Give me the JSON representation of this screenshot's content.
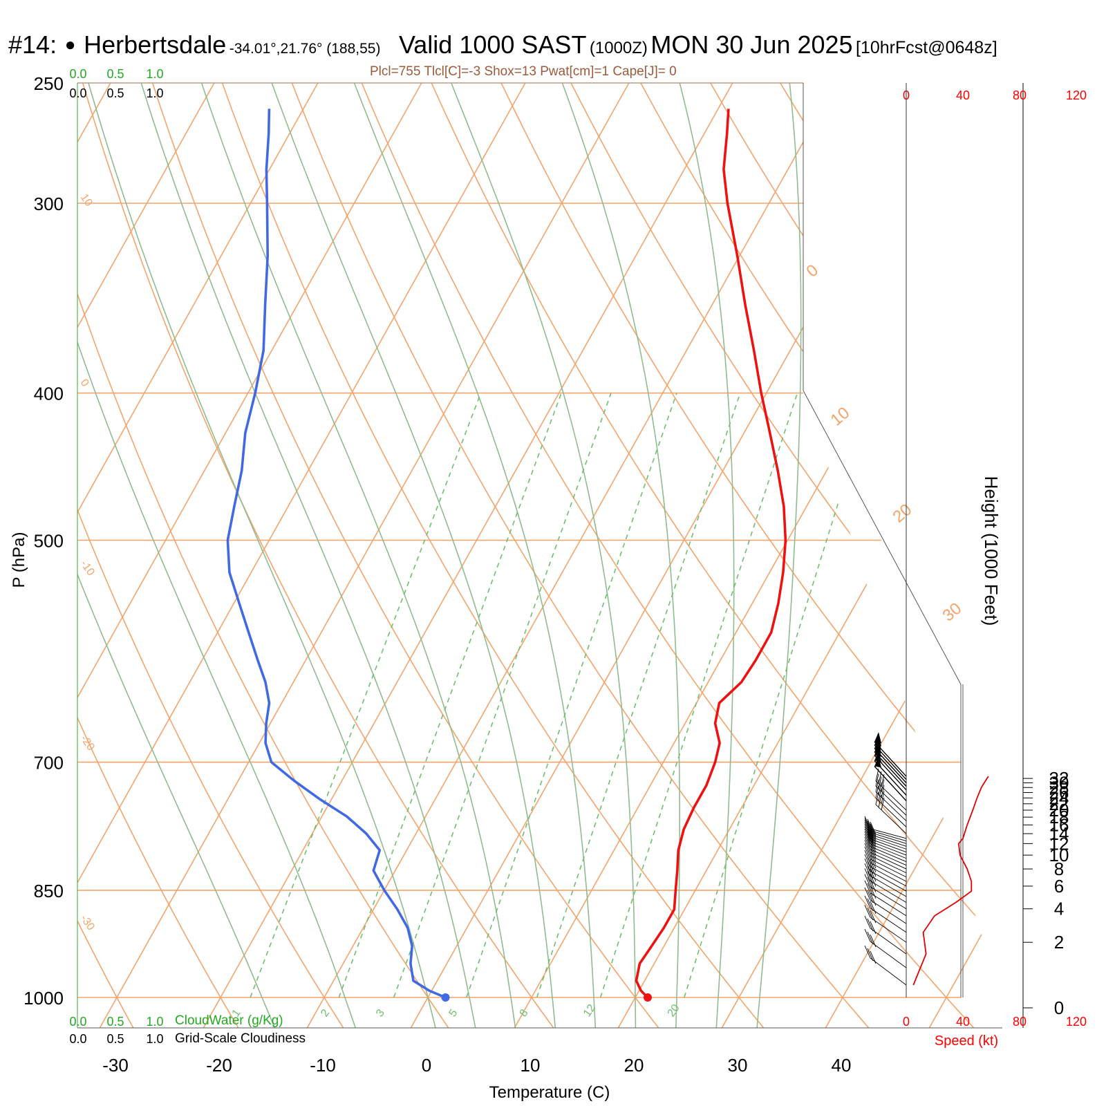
{
  "header": {
    "station": "#14:",
    "station_name": "Herbertsdale",
    "coords": "-34.01°,21.76° (188,55)",
    "valid": "Valid 1000 SAST",
    "zulu": "(1000Z)",
    "date": "MON 30 Jun 2025",
    "forecast": "[10hrFcst@0648z]",
    "indices": "Plcl=755 Tlcl[C]=-3 Shox=13 Pwat[cm]=1 Cape[J]= 0"
  },
  "axes": {
    "y_label": "P (hPa)",
    "x_label": "Temperature (C)",
    "right_label": "Height (1000 Feet)",
    "speed_label": "Speed (kt)",
    "cloudwater_label": "CloudWater (g/Kg)",
    "cloudiness_label": "Grid-Scale Cloudiness",
    "p_ticks": [
      "250",
      "300",
      "400",
      "500",
      "700",
      "850",
      "1000"
    ],
    "t_ticks": [
      "-30",
      "-20",
      "-10",
      "0",
      "10",
      "20",
      "30",
      "40"
    ],
    "height_ticks": [
      "0",
      "2",
      "4",
      "6",
      "8",
      "10",
      "12",
      "14",
      "16",
      "18",
      "20",
      "22",
      "24",
      "26",
      "28",
      "30",
      "32"
    ],
    "speed_ticks": [
      "0",
      "40",
      "80",
      "120"
    ],
    "scale_ticks": [
      "0.0",
      "0.5",
      "1.0"
    ],
    "mixing_ratio_labels": [
      "1",
      "2",
      "3",
      "5",
      "8",
      "12",
      "20"
    ],
    "isotherm_labels_left": [
      "10",
      "0",
      "-10",
      "-20",
      "-30"
    ],
    "isotherm_labels_right": [
      "0",
      "10",
      "20",
      "30"
    ]
  },
  "colors": {
    "temperature": "#ee1111",
    "dewpoint": "#4169e1",
    "isotherm": "#f4a46a",
    "adiabat": "#8fbc8f",
    "mixing_ratio": "#6fbf6f",
    "wind_speed": "#e00000",
    "index_text": "#9b5a3a",
    "scale_green": "#22aa22"
  },
  "chart_data": {
    "type": "skew-t",
    "pressure_range_hpa": [
      1000,
      250
    ],
    "temperature_range_c": [
      -30,
      40
    ],
    "temperature_profile": [
      {
        "p": 1000,
        "t": 21.2
      },
      {
        "p": 990,
        "t": 20.2
      },
      {
        "p": 975,
        "t": 19.2
      },
      {
        "p": 950,
        "t": 18.6
      },
      {
        "p": 925,
        "t": 18.8
      },
      {
        "p": 900,
        "t": 19.0
      },
      {
        "p": 875,
        "t": 19.0
      },
      {
        "p": 850,
        "t": 18.1
      },
      {
        "p": 825,
        "t": 17.2
      },
      {
        "p": 800,
        "t": 16.2
      },
      {
        "p": 775,
        "t": 15.6
      },
      {
        "p": 750,
        "t": 15.4
      },
      {
        "p": 725,
        "t": 15.4
      },
      {
        "p": 700,
        "t": 15.0
      },
      {
        "p": 680,
        "t": 14.4
      },
      {
        "p": 660,
        "t": 12.9
      },
      {
        "p": 640,
        "t": 12.2
      },
      {
        "p": 620,
        "t": 13.2
      },
      {
        "p": 600,
        "t": 13.4
      },
      {
        "p": 575,
        "t": 13.4
      },
      {
        "p": 550,
        "t": 12.5
      },
      {
        "p": 525,
        "t": 11.3
      },
      {
        "p": 500,
        "t": 9.8
      },
      {
        "p": 475,
        "t": 7.8
      },
      {
        "p": 450,
        "t": 5.3
      },
      {
        "p": 425,
        "t": 2.5
      },
      {
        "p": 400,
        "t": -0.5
      },
      {
        "p": 375,
        "t": -3.5
      },
      {
        "p": 350,
        "t": -6.8
      },
      {
        "p": 325,
        "t": -10.2
      },
      {
        "p": 300,
        "t": -14.0
      },
      {
        "p": 285,
        "t": -16.2
      },
      {
        "p": 270,
        "t": -17.8
      },
      {
        "p": 260,
        "t": -19.0
      }
    ],
    "dewpoint_profile": [
      {
        "p": 1000,
        "t": 1.7
      },
      {
        "p": 990,
        "t": -0.2
      },
      {
        "p": 975,
        "t": -2.3
      },
      {
        "p": 950,
        "t": -3.5
      },
      {
        "p": 925,
        "t": -4.3
      },
      {
        "p": 900,
        "t": -5.7
      },
      {
        "p": 875,
        "t": -7.7
      },
      {
        "p": 850,
        "t": -10.0
      },
      {
        "p": 825,
        "t": -12.1
      },
      {
        "p": 800,
        "t": -12.6
      },
      {
        "p": 780,
        "t": -14.8
      },
      {
        "p": 760,
        "t": -17.6
      },
      {
        "p": 740,
        "t": -21.2
      },
      {
        "p": 720,
        "t": -24.6
      },
      {
        "p": 700,
        "t": -27.8
      },
      {
        "p": 680,
        "t": -29.4
      },
      {
        "p": 660,
        "t": -30.4
      },
      {
        "p": 640,
        "t": -31.2
      },
      {
        "p": 620,
        "t": -32.7
      },
      {
        "p": 600,
        "t": -34.6
      },
      {
        "p": 575,
        "t": -37.0
      },
      {
        "p": 550,
        "t": -39.5
      },
      {
        "p": 525,
        "t": -42.1
      },
      {
        "p": 500,
        "t": -44.0
      },
      {
        "p": 475,
        "t": -45.2
      },
      {
        "p": 450,
        "t": -46.4
      },
      {
        "p": 425,
        "t": -48.1
      },
      {
        "p": 400,
        "t": -49.3
      },
      {
        "p": 375,
        "t": -50.8
      },
      {
        "p": 350,
        "t": -53.1
      },
      {
        "p": 325,
        "t": -55.5
      },
      {
        "p": 300,
        "t": -58.4
      },
      {
        "p": 285,
        "t": -60.3
      },
      {
        "p": 270,
        "t": -62.0
      },
      {
        "p": 260,
        "t": -63.3
      }
    ],
    "wind_speed_profile_kt": [
      {
        "h": 0.5,
        "kt": 5
      },
      {
        "h": 1.5,
        "kt": 14
      },
      {
        "h": 2.5,
        "kt": 12
      },
      {
        "h": 3.5,
        "kt": 20
      },
      {
        "h": 4.5,
        "kt": 35
      },
      {
        "h": 5.5,
        "kt": 46
      },
      {
        "h": 6.5,
        "kt": 46
      },
      {
        "h": 8,
        "kt": 43
      },
      {
        "h": 10,
        "kt": 38
      },
      {
        "h": 12,
        "kt": 37
      },
      {
        "h": 13,
        "kt": 40
      },
      {
        "h": 16,
        "kt": 43
      },
      {
        "h": 20,
        "kt": 47
      },
      {
        "h": 24,
        "kt": 50
      },
      {
        "h": 28,
        "kt": 53
      },
      {
        "h": 32,
        "kt": 57
      },
      {
        "h": 33,
        "kt": 58
      }
    ],
    "wind_barb_heights_kft": [
      0.5,
      1,
      1.5,
      2,
      2.5,
      3,
      3.5,
      4,
      4.5,
      5,
      5.5,
      6,
      6.5,
      7,
      7.5,
      8,
      8.5,
      9,
      9.5,
      10,
      10.5,
      11,
      11.5,
      12,
      12.5,
      13,
      14,
      15.5,
      17,
      18.5,
      20,
      23,
      25,
      27,
      28.5,
      30,
      31.5,
      33
    ]
  }
}
